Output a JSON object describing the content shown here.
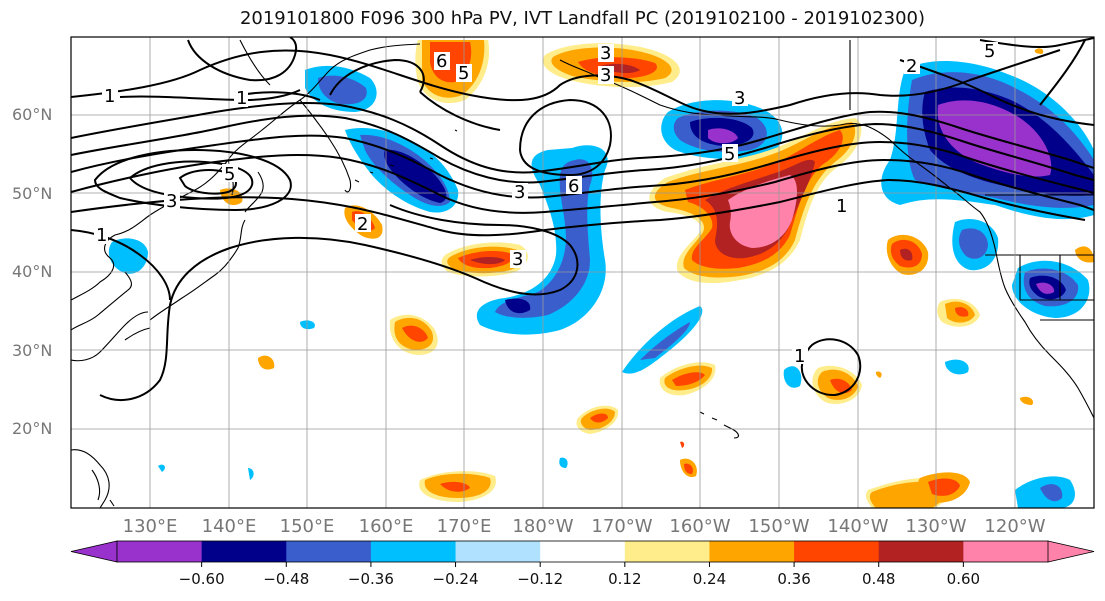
{
  "title": "2019101800 F096 300 hPa PV, IVT Landfall PC (2019102100 - 2019102300)",
  "lat_labels": [
    "20°N",
    "30°N",
    "40°N",
    "50°N",
    "60°N"
  ],
  "lon_labels": [
    "130°E",
    "140°E",
    "150°E",
    "160°E",
    "170°E",
    "180°W",
    "170°W",
    "160°W",
    "150°W",
    "140°W",
    "130°W",
    "120°W"
  ],
  "colorbar": {
    "colors": [
      "#9932CC",
      "#00008B",
      "#3A5FCD",
      "#00BFFF",
      "#B0E2FF",
      "#FFFFFF",
      "#FFEC8B",
      "#FFA500",
      "#FF4500",
      "#B22222",
      "#FF82AB"
    ],
    "tick_labels": [
      "−0.60",
      "−0.48",
      "−0.36",
      "−0.24",
      "−0.12",
      "0.12",
      "0.24",
      "0.36",
      "0.48",
      "0.60"
    ]
  },
  "contour_labels": [
    "1",
    "1",
    "1",
    "1",
    "3",
    "3",
    "3",
    "3",
    "3",
    "3",
    "5",
    "5",
    "5",
    "5",
    "6",
    "6",
    "2",
    "2",
    "1"
  ],
  "colors": {
    "negative_strong": "#9932CC",
    "positive_strong": "#FF82AB",
    "grid": "#999999",
    "contour": "#000000"
  }
}
